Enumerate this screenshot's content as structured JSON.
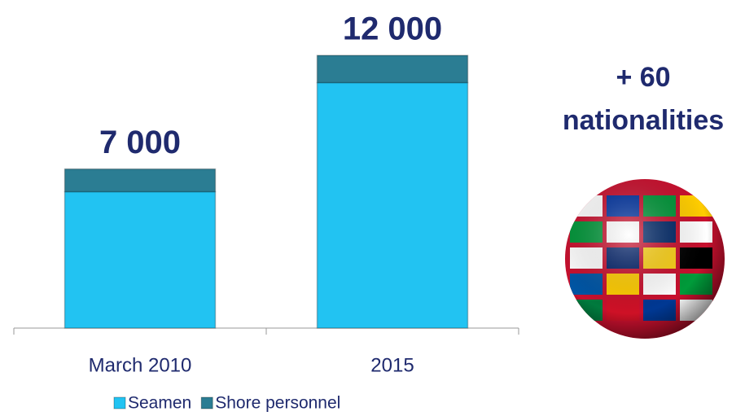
{
  "chart_data": {
    "type": "stacked_bar",
    "categories": [
      "March 2010",
      "2015"
    ],
    "series": [
      {
        "name": "Seamen",
        "color": "#22c3f2",
        "values": [
          6000,
          10800
        ]
      },
      {
        "name": "Shore personnel",
        "color": "#2b7d93",
        "values": [
          1000,
          1200
        ]
      }
    ],
    "totals": [
      7000,
      12000
    ],
    "total_labels": [
      "7 000",
      "12 000"
    ],
    "ylim": [
      0,
      12000
    ],
    "legend": "bottom",
    "annotation": [
      "+ 60",
      "nationalities"
    ]
  }
}
